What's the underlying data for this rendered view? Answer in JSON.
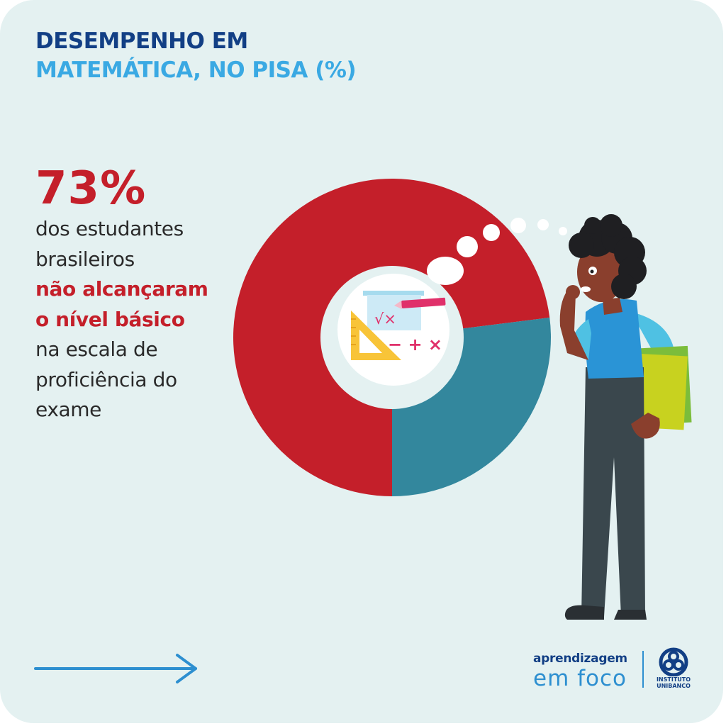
{
  "title": {
    "line1": "DESEMPENHO EM",
    "line2": "MATEMÁTICA, NO PISA (%)"
  },
  "stat": {
    "value": "73%",
    "lines": [
      "dos estudantes",
      "brasileiros",
      "não alcançaram",
      "o nível básico",
      "na escala de",
      "proficiência do",
      "exame"
    ],
    "highlight_lines": [
      2,
      3
    ]
  },
  "chart_data": {
    "type": "pie",
    "donut": true,
    "slices": [
      {
        "label": "não alcançaram o nível básico",
        "value": 73,
        "color": "#c41f2a"
      },
      {
        "label": "",
        "value": 27,
        "color": "#33879d"
      }
    ],
    "start": "bottom",
    "direction": "clockwise",
    "title": "DESEMPENHO EM MATEMÁTICA, NO PISA (%)"
  },
  "colors": {
    "background": "#e4f1f1",
    "title_dark": "#123f85",
    "title_light": "#3aa9e3",
    "accent_red": "#c41f2a",
    "accent_teal": "#33879d",
    "arrow": "#2d8fd0"
  },
  "icons": {
    "center": "math-symbols-icon",
    "person": "thinking-student-illustration",
    "arrow": "arrow-right-icon",
    "logo": "instituto-unibanco-logo"
  },
  "brand": {
    "line1": "aprendizagem",
    "line2": "em foco",
    "logo_line1": "INSTITUTO",
    "logo_line2": "UNIBANCO"
  }
}
